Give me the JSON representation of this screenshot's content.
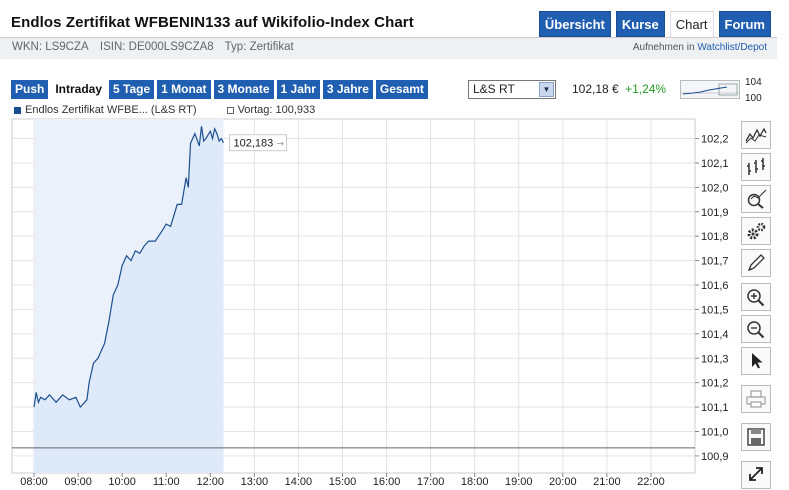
{
  "header": {
    "title": "Endlos Zertifikat WFBENIN133 auf Wikifolio-Index Chart",
    "tabs": [
      {
        "label": "Übersicht",
        "active": false
      },
      {
        "label": "Kurse",
        "active": false
      },
      {
        "label": "Chart",
        "active": true
      },
      {
        "label": "Forum",
        "active": false
      }
    ]
  },
  "meta": {
    "wkn": "WKN: LS9CZA",
    "isin": "ISIN: DE000LS9CZA8",
    "typ": "Typ: Zertifikat",
    "watchlist_prefix": "Aufnehmen in",
    "watchlist_link": "Watchlist/Depot"
  },
  "toolbar": {
    "ranges": [
      {
        "label": "Push",
        "active": false
      },
      {
        "label": "Intraday",
        "active": true
      },
      {
        "label": "5 Tage",
        "active": false
      },
      {
        "label": "1 Monat",
        "active": false
      },
      {
        "label": "3 Monate",
        "active": false
      },
      {
        "label": "1 Jahr",
        "active": false
      },
      {
        "label": "3 Jahre",
        "active": false
      },
      {
        "label": "Gesamt",
        "active": false
      }
    ],
    "exchange": "L&S RT",
    "price": "102,18 €",
    "change": "+1,24%",
    "mini_high": "104",
    "mini_low": "100"
  },
  "legend": {
    "series_label": "Endlos Zertifikat WFBE... (L&S RT)",
    "prev_label": "Vortag: 100,933"
  },
  "colors": {
    "accent": "#1f5eb0",
    "line": "#1b4f8f",
    "fill": "#dde9f8",
    "positive": "#2a9b2a"
  },
  "chart_data": {
    "type": "area",
    "y_ticks": [
      "102,2",
      "102,1",
      "102,0",
      "101,9",
      "101,8",
      "101,7",
      "101,6",
      "101,5",
      "101,4",
      "101,3",
      "101,2",
      "101,1",
      "101,0",
      "100,9"
    ],
    "x_ticks": [
      "08:00",
      "09:00",
      "10:00",
      "11:00",
      "12:00",
      "13:00",
      "14:00",
      "15:00",
      "16:00",
      "17:00",
      "18:00",
      "19:00",
      "20:00",
      "21:00",
      "22:00"
    ],
    "ylim": [
      100.83,
      102.28
    ],
    "xlim": [
      7.5,
      23.0
    ],
    "previous_close": 100.933,
    "last_value_label": "102,183",
    "series": [
      {
        "x": [
          8.0,
          8.05,
          8.1,
          8.15,
          8.25,
          8.35,
          8.5,
          8.65,
          8.8,
          8.95,
          9.05,
          9.15,
          9.2,
          9.25,
          9.35,
          9.45,
          9.6,
          9.7,
          9.8,
          9.9,
          10.0,
          10.1,
          10.2,
          10.3,
          10.4,
          10.5,
          10.6,
          10.75,
          10.9,
          11.0,
          11.1,
          11.25,
          11.35,
          11.45,
          11.5,
          11.55,
          11.65,
          11.75,
          11.8,
          11.85,
          11.9,
          12.0,
          12.05,
          12.1,
          12.15,
          12.2,
          12.25,
          12.3
        ],
        "values": [
          101.1,
          101.16,
          101.12,
          101.14,
          101.13,
          101.15,
          101.12,
          101.15,
          101.13,
          101.14,
          101.1,
          101.12,
          101.13,
          101.2,
          101.28,
          101.3,
          101.36,
          101.45,
          101.56,
          101.6,
          101.68,
          101.72,
          101.7,
          101.74,
          101.73,
          101.76,
          101.78,
          101.78,
          101.82,
          101.85,
          101.84,
          101.93,
          101.93,
          102.04,
          102.0,
          102.18,
          102.22,
          102.17,
          102.25,
          102.19,
          102.2,
          102.23,
          102.2,
          102.24,
          102.22,
          102.19,
          102.2,
          102.183
        ]
      }
    ]
  }
}
